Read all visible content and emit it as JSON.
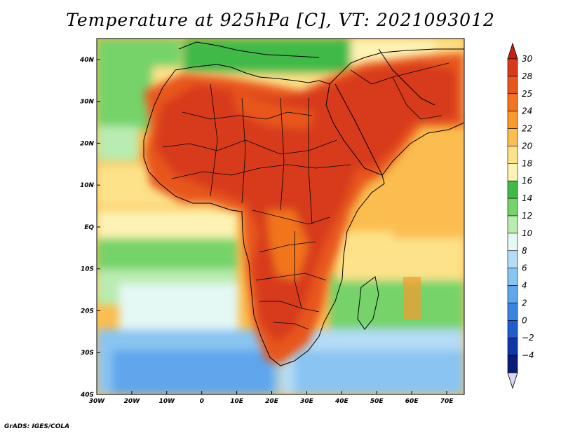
{
  "title": "Temperature at 925hPa [C], VT: 2021093012",
  "footer": "GrADS: IGES/COLA",
  "map": {
    "lon_range": [
      -30,
      75
    ],
    "lat_range": [
      -40,
      45
    ],
    "lon_ticks": [
      {
        "lon": -30,
        "label": "30W"
      },
      {
        "lon": -20,
        "label": "20W"
      },
      {
        "lon": -10,
        "label": "10W"
      },
      {
        "lon": 0,
        "label": "0"
      },
      {
        "lon": 10,
        "label": "10E"
      },
      {
        "lon": 20,
        "label": "20E"
      },
      {
        "lon": 30,
        "label": "30E"
      },
      {
        "lon": 40,
        "label": "40E"
      },
      {
        "lon": 50,
        "label": "50E"
      },
      {
        "lon": 60,
        "label": "60E"
      },
      {
        "lon": 70,
        "label": "70E"
      }
    ],
    "lat_ticks": [
      {
        "lat": 40,
        "label": "40N"
      },
      {
        "lat": 30,
        "label": "30N"
      },
      {
        "lat": 20,
        "label": "20N"
      },
      {
        "lat": 10,
        "label": "10N"
      },
      {
        "lat": 0,
        "label": "EQ"
      },
      {
        "lat": -10,
        "label": "10S"
      },
      {
        "lat": -20,
        "label": "20S"
      },
      {
        "lat": -30,
        "label": "30S"
      },
      {
        "lat": -40,
        "label": "40S"
      }
    ]
  },
  "colorbar": {
    "levels": [
      {
        "label": "30",
        "color": "#d73a1a"
      },
      {
        "label": "28",
        "color": "#e8561e"
      },
      {
        "label": "25",
        "color": "#f2741f"
      },
      {
        "label": "24",
        "color": "#f89a2e"
      },
      {
        "label": "22",
        "color": "#fbbd4f"
      },
      {
        "label": "20",
        "color": "#fde28a"
      },
      {
        "label": "18",
        "color": "#fdf3b4"
      },
      {
        "label": "16",
        "color": "#41b949"
      },
      {
        "label": "14",
        "color": "#76d36a"
      },
      {
        "label": "12",
        "color": "#b9ecb0"
      },
      {
        "label": "10",
        "color": "#e4f8f4"
      },
      {
        "label": "8",
        "color": "#b4dcf6"
      },
      {
        "label": "6",
        "color": "#8ac4f2"
      },
      {
        "label": "4",
        "color": "#5fa6ec"
      },
      {
        "label": "2",
        "color": "#3a84e0"
      },
      {
        "label": "0",
        "color": "#1f5ccc"
      },
      {
        "label": "−2",
        "color": "#1136a6"
      },
      {
        "label": "−4",
        "color": "#0a1c78"
      }
    ],
    "top_color": "#c81e10",
    "bottom_color": "#dcd8f4"
  }
}
